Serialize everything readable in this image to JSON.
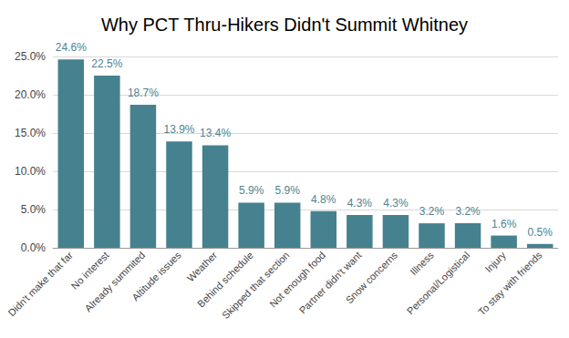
{
  "chart_data": {
    "type": "bar",
    "title": "Why PCT Thru-Hikers Didn't Summit Whitney",
    "categories": [
      "Didn't make that far",
      "No interest",
      "Already summited",
      "Altitude issues",
      "Weather",
      "Behind schedule",
      "Skipped that section",
      "Not enough food",
      "Partner didn't want",
      "Snow concerns",
      "Illness",
      "Personal/Logistical",
      "Injury",
      "To stay with friends"
    ],
    "values": [
      24.6,
      22.5,
      18.7,
      13.9,
      13.4,
      5.9,
      5.9,
      4.8,
      4.3,
      4.3,
      3.2,
      3.2,
      1.6,
      0.5
    ],
    "value_labels": [
      "24.6%",
      "22.5%",
      "18.7%",
      "13.9%",
      "13.4%",
      "5.9%",
      "5.9%",
      "4.8%",
      "4.3%",
      "4.3%",
      "3.2%",
      "3.2%",
      "1.6%",
      "0.5%"
    ],
    "color": "#45818e",
    "ylim": [
      0,
      25
    ],
    "yticks": [
      {
        "value": 0,
        "label": "0.0%"
      },
      {
        "value": 5,
        "label": "5.0%"
      },
      {
        "value": 10,
        "label": "10.0%"
      },
      {
        "value": 15,
        "label": "15.0%"
      },
      {
        "value": 20,
        "label": "20.0%"
      },
      {
        "value": 25,
        "label": "25.0%"
      }
    ],
    "grid": true,
    "data_labels": true
  }
}
